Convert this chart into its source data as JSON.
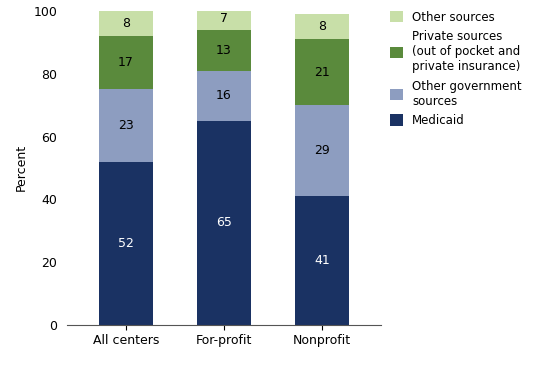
{
  "categories": [
    "All centers",
    "For-profit",
    "Nonprofit"
  ],
  "segments": [
    {
      "label": "Medicaid",
      "values": [
        52,
        65,
        41
      ],
      "color": "#1a3263",
      "text_color": "#ffffff"
    },
    {
      "label": "Other government sources",
      "values": [
        23,
        16,
        29
      ],
      "color": "#8d9dc0",
      "text_color": "#000000"
    },
    {
      "label": "Private sources\n(out of pocket and\nprivate insurance)",
      "values": [
        17,
        13,
        21
      ],
      "color": "#5a8a3c",
      "text_color": "#000000"
    },
    {
      "label": "Other sources",
      "values": [
        8,
        7,
        8
      ],
      "color": "#c8dfa8",
      "text_color": "#000000"
    }
  ],
  "legend_labels_display": [
    "Other sources",
    "Private sources\n(out of pocket and\nprivate insurance)",
    "Other government\nsources",
    "Medicaid"
  ],
  "legend_order": [
    3,
    2,
    1,
    0
  ],
  "ylabel": "Percent",
  "ylim": [
    0,
    100
  ],
  "yticks": [
    0,
    20,
    40,
    60,
    80,
    100
  ],
  "bar_width": 0.55,
  "background_color": "#ffffff",
  "font_size_labels": 9,
  "font_size_ticks": 9,
  "font_size_legend": 8.5
}
